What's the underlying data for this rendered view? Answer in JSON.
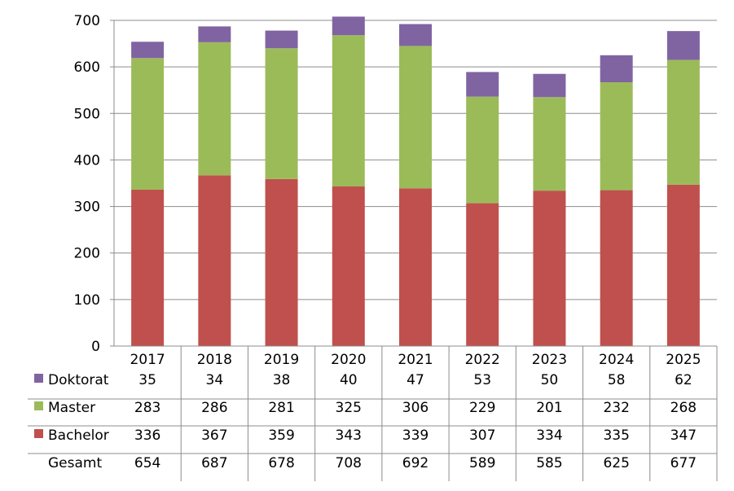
{
  "chart_data": {
    "type": "bar",
    "stacked": true,
    "categories": [
      "2017",
      "2018",
      "2019",
      "2020",
      "2021",
      "2022",
      "2023",
      "2024",
      "2025"
    ],
    "ylim": [
      0,
      700
    ],
    "yticks": [
      0,
      100,
      200,
      300,
      400,
      500,
      600,
      700
    ],
    "grid": true,
    "legend": "data-table",
    "series": [
      {
        "name": "Bachelor",
        "color": "#C0504D",
        "values": [
          336,
          367,
          359,
          343,
          339,
          307,
          334,
          335,
          347
        ]
      },
      {
        "name": "Master",
        "color": "#9BBB59",
        "values": [
          283,
          286,
          281,
          325,
          306,
          229,
          201,
          232,
          268
        ]
      },
      {
        "name": "Doktorat",
        "color": "#8064A2",
        "values": [
          35,
          34,
          38,
          40,
          47,
          53,
          50,
          58,
          62
        ]
      }
    ],
    "table_rows": [
      "Doktorat",
      "Master",
      "Bachelor"
    ],
    "total_label": "Gesamt",
    "totals": [
      654,
      687,
      678,
      708,
      692,
      589,
      585,
      625,
      677
    ]
  }
}
